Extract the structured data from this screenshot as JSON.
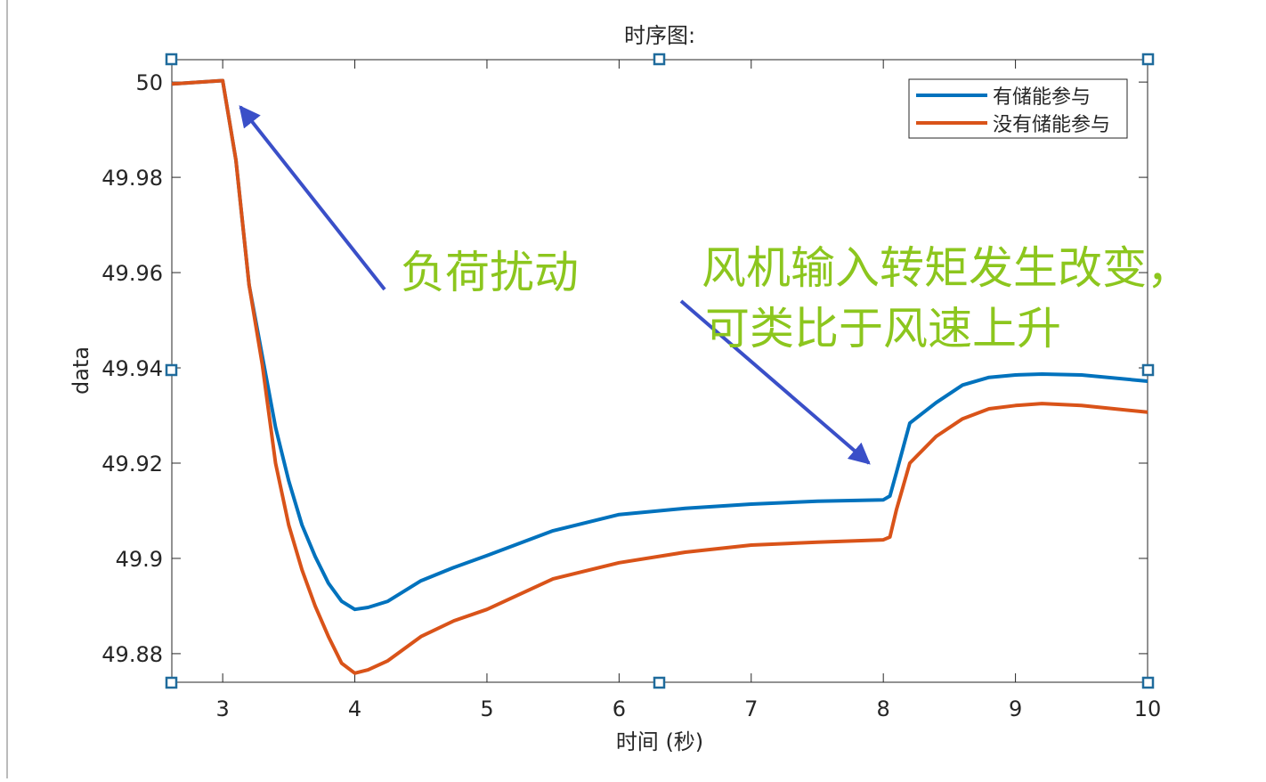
{
  "chart_data": {
    "type": "line",
    "title": "时序图:",
    "x_label": "时间 (秒)",
    "y_label": "data",
    "x": [
      2.615,
      3.0,
      3.1,
      3.2,
      3.3,
      3.4,
      3.5,
      3.6,
      3.7,
      3.8,
      3.9,
      4.0,
      4.1,
      4.25,
      4.5,
      4.75,
      5.0,
      5.5,
      6.0,
      6.5,
      7.0,
      7.5,
      8.0,
      8.05,
      8.1,
      8.2,
      8.4,
      8.6,
      8.8,
      9.0,
      9.2,
      9.5,
      10.0
    ],
    "series": [
      {
        "name": "有储能参与",
        "color": "#0072bd",
        "values": [
          49.9996,
          50.0003,
          49.9836,
          49.9574,
          49.9424,
          49.9275,
          49.9163,
          49.907,
          49.9004,
          49.8948,
          49.891,
          49.8893,
          49.8897,
          49.891,
          49.8953,
          49.8981,
          49.9006,
          49.9058,
          49.9092,
          49.9105,
          49.9114,
          49.912,
          49.9123,
          49.9131,
          49.9181,
          49.9284,
          49.9327,
          49.9364,
          49.938,
          49.9385,
          49.9387,
          49.9385,
          49.9372
        ]
      },
      {
        "name": "没有储能参与",
        "color": "#d95319",
        "values": [
          49.9996,
          50.0003,
          49.9836,
          49.9574,
          49.9406,
          49.92,
          49.907,
          49.8976,
          49.89,
          49.8836,
          49.878,
          49.8759,
          49.8766,
          49.8785,
          49.8836,
          49.8869,
          49.8893,
          49.8957,
          49.8991,
          49.9013,
          49.9028,
          49.9034,
          49.9039,
          49.9045,
          49.9103,
          49.92,
          49.9256,
          49.9293,
          49.9314,
          49.9321,
          49.9325,
          49.9321,
          49.9307
        ]
      }
    ],
    "xlim": [
      2.615,
      10
    ],
    "xticks": [
      3,
      4,
      5,
      6,
      7,
      8,
      9,
      10
    ],
    "ylim": [
      49.874,
      50.0047
    ],
    "yticks": [
      49.88,
      49.9,
      49.92,
      49.94,
      49.96,
      49.98,
      50
    ],
    "legend": "northeast",
    "annotations": [
      "负荷扰动",
      "风机输入转矩发生改变，",
      "可类比于风速上升"
    ]
  }
}
